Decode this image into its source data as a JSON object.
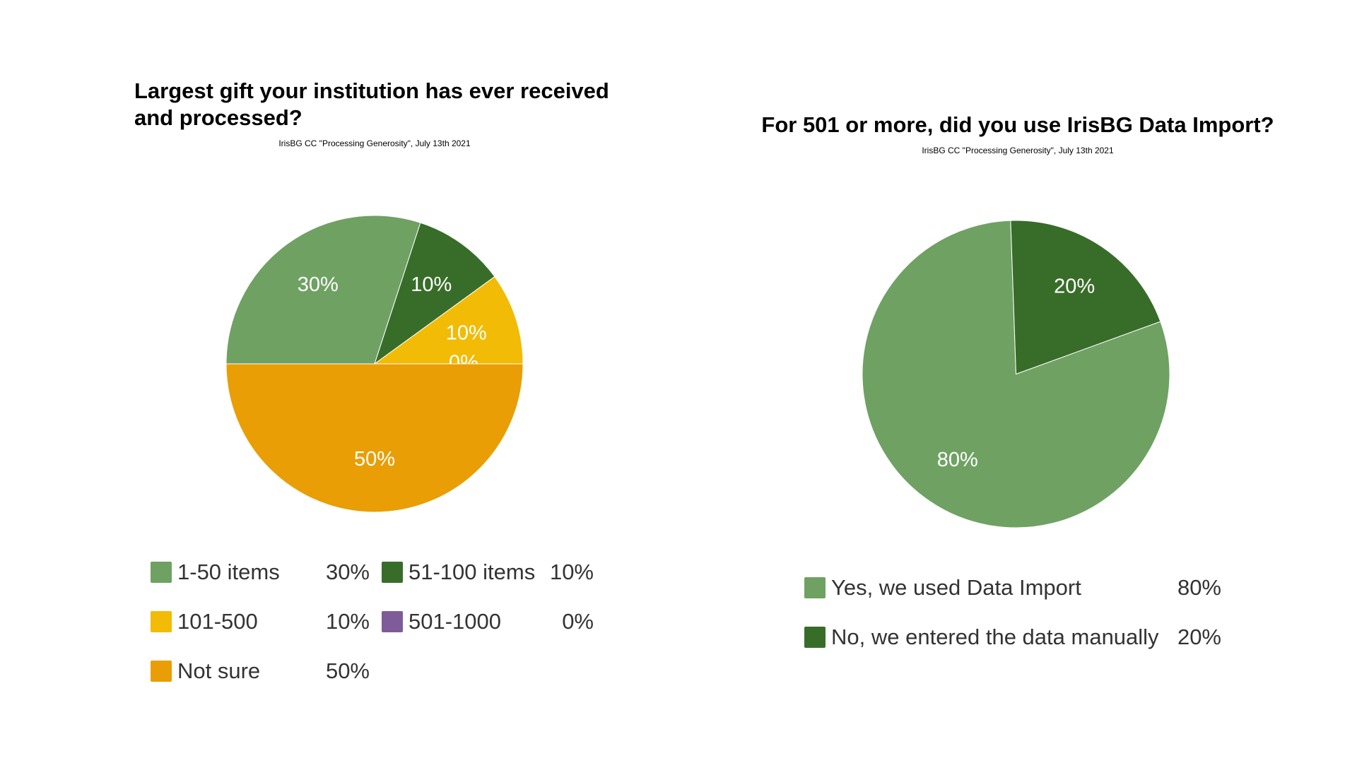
{
  "chart_data": [
    {
      "type": "pie",
      "title": "Largest gift your institution has ever received and processed?",
      "subtitle": "IrisBG CC \"Processing Generosity\", July 13th 2021",
      "legend_position": "bottom",
      "slices": [
        {
          "label": "1-50 items",
          "value": 30,
          "display": "30%",
          "color": "#6fa163"
        },
        {
          "label": "51-100 items",
          "value": 10,
          "display": "10%",
          "color": "#386d29"
        },
        {
          "label": "101-500",
          "value": 10,
          "display": "10%",
          "color": "#f2bb05"
        },
        {
          "label": "501-1000",
          "value": 0,
          "display": "0%",
          "color": "#7d5c99"
        },
        {
          "label": "Not sure",
          "value": 50,
          "display": "50%",
          "color": "#e99e05"
        }
      ]
    },
    {
      "type": "pie",
      "title": "For 501 or more, did you use IrisBG Data Import?",
      "subtitle": "IrisBG CC \"Processing Generosity\", July 13th 2021",
      "legend_position": "bottom",
      "slices": [
        {
          "label": "Yes, we used Data Import",
          "value": 80,
          "display": "80%",
          "color": "#6fa163"
        },
        {
          "label": "No, we entered the data manually",
          "value": 20,
          "display": "20%",
          "color": "#386d29"
        }
      ]
    }
  ]
}
